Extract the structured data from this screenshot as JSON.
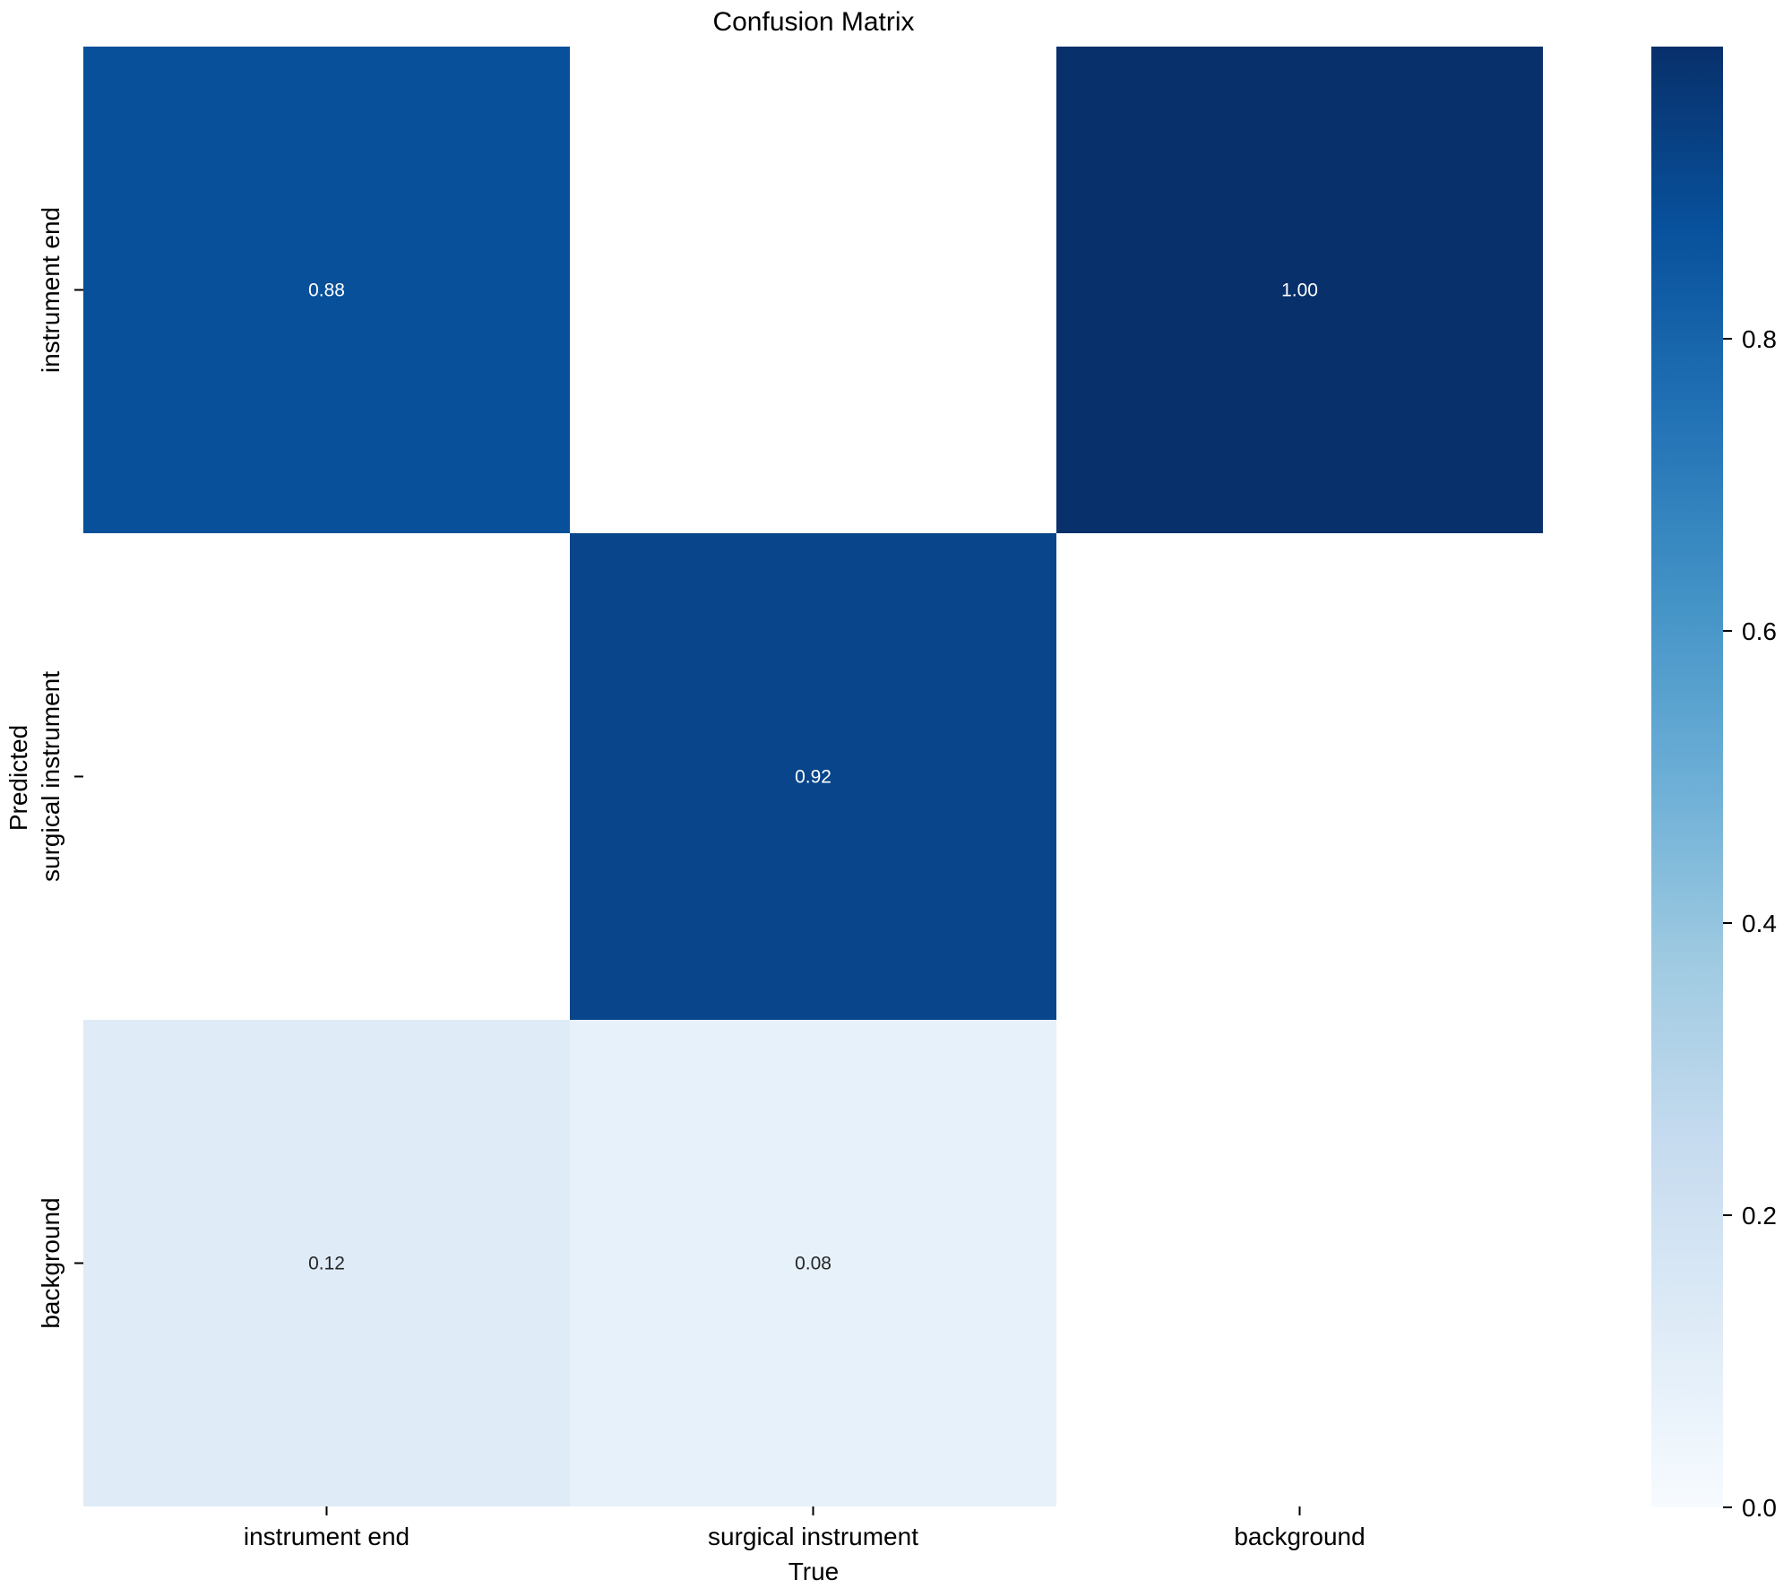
{
  "chart_data": {
    "type": "heatmap",
    "title": "Confusion Matrix",
    "xlabel": "True",
    "ylabel": "Predicted",
    "x_categories": [
      "instrument end",
      "surgical instrument",
      "background"
    ],
    "y_categories": [
      "instrument end",
      "surgical instrument",
      "background"
    ],
    "values": [
      [
        0.88,
        null,
        1.0
      ],
      [
        null,
        0.92,
        null
      ],
      [
        0.12,
        0.08,
        null
      ]
    ],
    "annotations": [
      [
        "0.88",
        "",
        "1.00"
      ],
      [
        "",
        "0.92",
        ""
      ],
      [
        "0.12",
        "0.08",
        ""
      ]
    ],
    "colormap": "Blues",
    "colorbar": {
      "range": [
        0,
        1.0
      ],
      "ticks": [
        0.0,
        0.2,
        0.4,
        0.6,
        0.8
      ],
      "tick_labels": [
        "0.0",
        "0.2",
        "0.4",
        "0.6",
        "0.8"
      ]
    },
    "colors": {
      "low": "#f7fbff",
      "high": "#08306b",
      "annot_dark_bg": "#ffffff",
      "annot_light_bg": "#262626"
    }
  }
}
